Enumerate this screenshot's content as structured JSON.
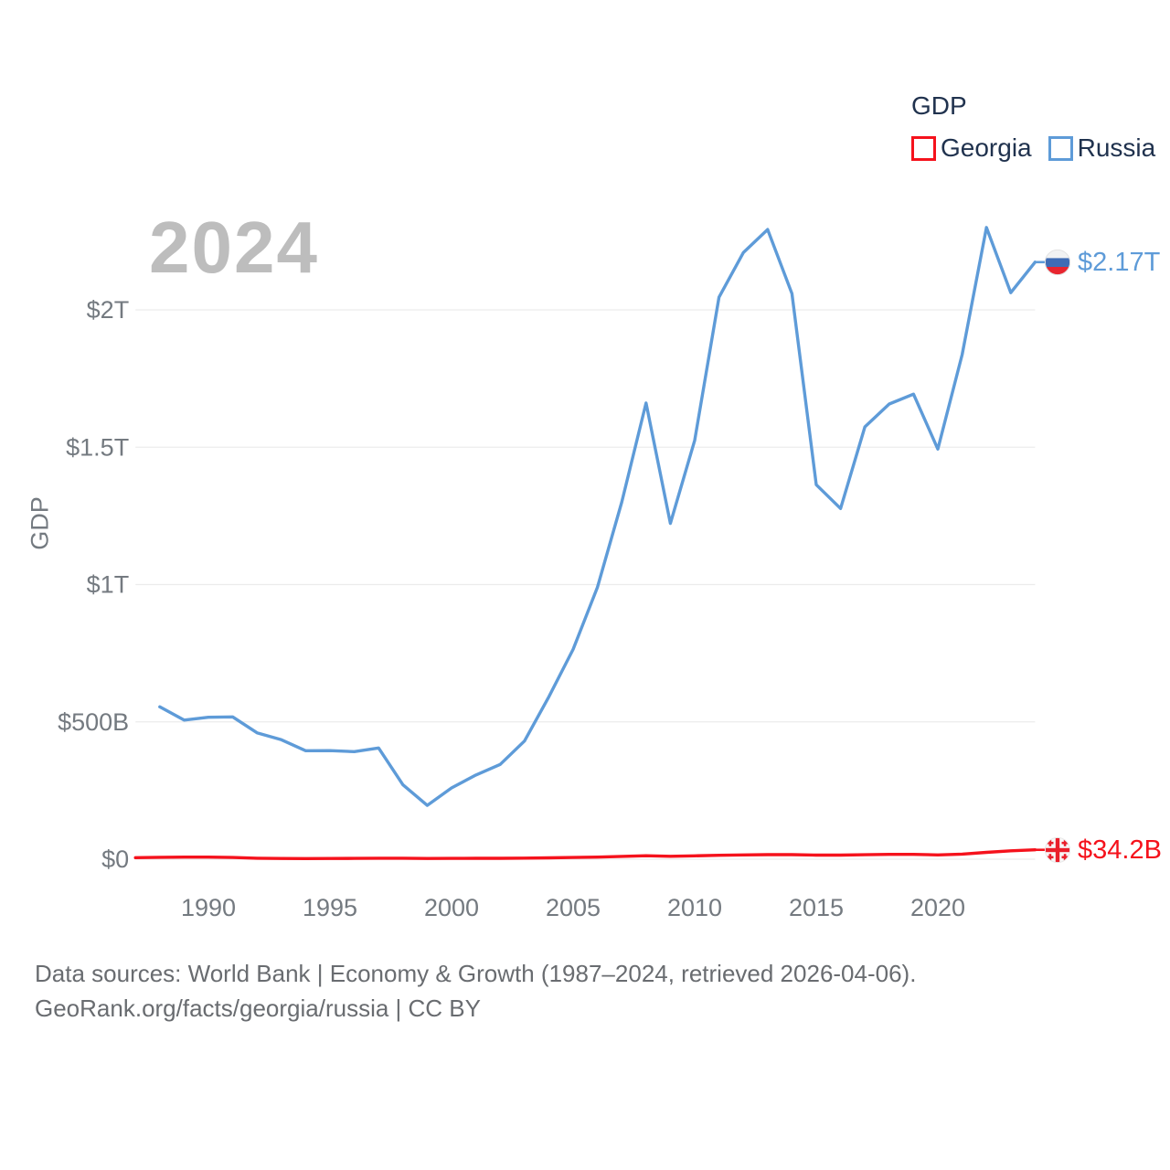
{
  "year_label": "2024",
  "legend": {
    "title": "GDP",
    "items": [
      {
        "label": "Georgia",
        "color": "#f5121c"
      },
      {
        "label": "Russia",
        "color": "#5e9bd8"
      }
    ]
  },
  "chart_data": {
    "type": "line",
    "title": "2024",
    "xlabel": "",
    "ylabel": "GDP",
    "units": "USD",
    "grid": "horizontal",
    "legend_position": "top-right",
    "xlim": [
      1987,
      2024
    ],
    "ylim": [
      0,
      2400
    ],
    "x": [
      1987,
      1988,
      1989,
      1990,
      1991,
      1992,
      1993,
      1994,
      1995,
      1996,
      1997,
      1998,
      1999,
      2000,
      2001,
      2002,
      2003,
      2004,
      2005,
      2006,
      2007,
      2008,
      2009,
      2010,
      2011,
      2012,
      2013,
      2014,
      2015,
      2016,
      2017,
      2018,
      2019,
      2020,
      2021,
      2022,
      2023,
      2024
    ],
    "series": [
      {
        "name": "Georgia",
        "color": "#f5121c",
        "flag": "georgia-flag",
        "end_label": "$34.2B",
        "values_unit": "billions USD",
        "values": [
          5.7,
          6.9,
          7.5,
          7.8,
          6.3,
          3.7,
          2.7,
          2.4,
          2.7,
          3.1,
          3.5,
          3.6,
          2.8,
          3.1,
          3.2,
          3.4,
          4.0,
          5.1,
          6.4,
          7.8,
          10.2,
          12.8,
          10.8,
          12.2,
          14.4,
          15.8,
          16.5,
          16.5,
          15.0,
          15.1,
          16.2,
          17.6,
          17.5,
          15.8,
          18.6,
          24.8,
          30.5,
          34.2
        ]
      },
      {
        "name": "Russia",
        "color": "#5e9bd8",
        "flag": "russia-flag",
        "end_label": "$2.17T",
        "values_unit": "billions USD",
        "values": [
          null,
          554.7,
          506.5,
          516.8,
          518.0,
          460.2,
          435.1,
          395.1,
          395.5,
          391.7,
          404.9,
          271.0,
          195.9,
          259.7,
          306.6,
          345.1,
          430.3,
          591.0,
          764.0,
          989.9,
          1299.7,
          1660.8,
          1222.6,
          1524.9,
          2045.9,
          2208.3,
          2292.5,
          2059.2,
          1363.5,
          1276.8,
          1574.2,
          1657.3,
          1693.1,
          1493.1,
          1836.9,
          2300.0,
          2062.6,
          2173.8
        ]
      }
    ],
    "x_ticks": [
      {
        "value": 1990,
        "label": "1990"
      },
      {
        "value": 1995,
        "label": "1995"
      },
      {
        "value": 2000,
        "label": "2000"
      },
      {
        "value": 2005,
        "label": "2005"
      },
      {
        "value": 2010,
        "label": "2010"
      },
      {
        "value": 2015,
        "label": "2015"
      },
      {
        "value": 2020,
        "label": "2020"
      }
    ],
    "y_ticks": [
      {
        "value": 0,
        "label": "$0"
      },
      {
        "value": 500,
        "label": "$500B"
      },
      {
        "value": 1000,
        "label": "$1T"
      },
      {
        "value": 1500,
        "label": "$1.5T"
      },
      {
        "value": 2000,
        "label": "$2T"
      }
    ]
  },
  "footer": {
    "line1": "Data sources: World Bank | Economy & Growth (1987–2024, retrieved 2026-04-06).",
    "line2": "GeoRank.org/facts/georgia/russia | CC BY"
  }
}
